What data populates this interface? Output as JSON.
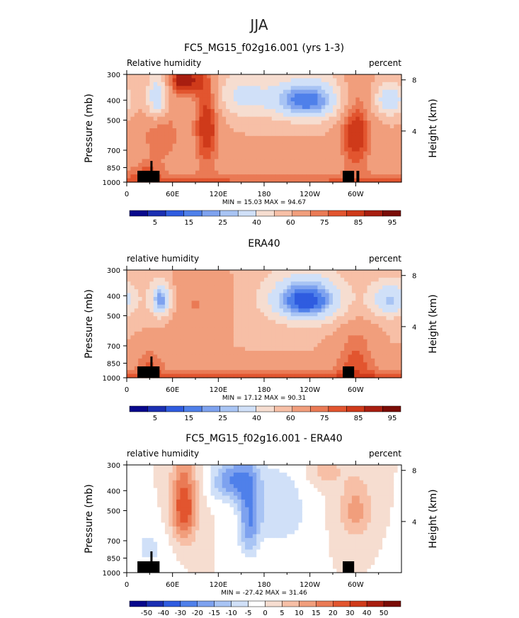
{
  "page": {
    "title": "JJA"
  },
  "colors": {
    "full": [
      "#08088c",
      "#1b2fb2",
      "#2f5ce0",
      "#4f80ea",
      "#7ea2ef",
      "#a8c4f4",
      "#d0e0f8",
      "#f6ddd0",
      "#f7bfa6",
      "#f19e7c",
      "#ea7a55",
      "#e2552f",
      "#cf3a1a",
      "#a81e10",
      "#7a0c06"
    ],
    "diff": [
      "#08088c",
      "#1b2fb2",
      "#2f5ce0",
      "#4f80ea",
      "#7ea2ef",
      "#a8c4f4",
      "#d0e0f8",
      "#ffffff",
      "#f6ddd0",
      "#f7bfa6",
      "#f19e7c",
      "#ea7a55",
      "#e2552f",
      "#cf3a1a",
      "#a81e10",
      "#7a0c06"
    ]
  },
  "chart_data": [
    {
      "type": "heatmap",
      "title": "FC5_MG15_f02g16.001 (yrs 1-3)",
      "left_label": "Relative humidity",
      "right_label": "percent",
      "xlabel": "",
      "ylabel": "Pressure (mb)",
      "ylabel_right": "Height (km)",
      "x_ticks": [
        "0",
        "60E",
        "120E",
        "180",
        "120W",
        "60W"
      ],
      "x_tick_values": [
        0,
        60,
        120,
        180,
        240,
        300
      ],
      "xlim": [
        0,
        360
      ],
      "y_ticks": [
        "300",
        "400",
        "500",
        "700",
        "850",
        "1000"
      ],
      "y_tick_values": [
        300,
        400,
        500,
        700,
        850,
        1000
      ],
      "ylim": [
        300,
        1000
      ],
      "height_ticks": [
        "8",
        "4"
      ],
      "height_tick_values": [
        8,
        4
      ],
      "stats": "MIN =   15.03   MAX =   94.67",
      "colorbar_labels": [
        "5",
        "15",
        "25",
        "40",
        "60",
        "75",
        "85",
        "95"
      ],
      "colorbar_levels": [
        0,
        5,
        10,
        15,
        20,
        25,
        30,
        40,
        50,
        60,
        70,
        75,
        80,
        85,
        90,
        95
      ],
      "scheme": "full",
      "base": 60,
      "surface": 78,
      "features": [
        {
          "lon": 40,
          "p": 390,
          "wlon": 10,
          "wp": 70,
          "amp": -38
        },
        {
          "lon": 45,
          "p": 570,
          "wlon": 20,
          "wp": 160,
          "amp": 15
        },
        {
          "lon": 75,
          "p": 320,
          "wlon": 15,
          "wp": 40,
          "amp": 28
        },
        {
          "lon": 105,
          "p": 520,
          "wlon": 12,
          "wp": 220,
          "amp": 25
        },
        {
          "lon": 150,
          "p": 380,
          "wlon": 25,
          "wp": 70,
          "amp": -22
        },
        {
          "lon": 235,
          "p": 400,
          "wlon": 35,
          "wp": 70,
          "amp": -45
        },
        {
          "lon": 300,
          "p": 560,
          "wlon": 15,
          "wp": 200,
          "amp": 25
        },
        {
          "lon": 345,
          "p": 400,
          "wlon": 15,
          "wp": 50,
          "amp": -30
        },
        {
          "lon": 25,
          "p": 900,
          "wlon": 15,
          "wp": 90,
          "amp": 10
        }
      ]
    },
    {
      "type": "heatmap",
      "title": "ERA40",
      "left_label": "relative humidity",
      "right_label": "percent",
      "xlabel": "",
      "ylabel": "Pressure (mb)",
      "ylabel_right": "Height (km)",
      "x_ticks": [
        "0",
        "60E",
        "120E",
        "180",
        "120W",
        "60W"
      ],
      "x_tick_values": [
        0,
        60,
        120,
        180,
        240,
        300
      ],
      "xlim": [
        0,
        360
      ],
      "y_ticks": [
        "300",
        "400",
        "500",
        "700",
        "850",
        "1000"
      ],
      "y_tick_values": [
        300,
        400,
        500,
        700,
        850,
        1000
      ],
      "ylim": [
        300,
        1000
      ],
      "height_ticks": [
        "8",
        "4"
      ],
      "height_tick_values": [
        8,
        4
      ],
      "stats": "MIN =   17.12   MAX =   90.31",
      "colorbar_labels": [
        "5",
        "15",
        "25",
        "40",
        "60",
        "75",
        "85",
        "95"
      ],
      "colorbar_levels": [
        0,
        5,
        10,
        15,
        20,
        25,
        30,
        40,
        50,
        60,
        70,
        75,
        80,
        85,
        90,
        95
      ],
      "scheme": "full",
      "base": 58,
      "surface": 80,
      "features": [
        {
          "lon": 45,
          "p": 420,
          "wlon": 10,
          "wp": 60,
          "amp": -40
        },
        {
          "lon": 90,
          "p": 440,
          "wlon": 30,
          "wp": 150,
          "amp": 12
        },
        {
          "lon": 235,
          "p": 420,
          "wlon": 35,
          "wp": 80,
          "amp": -48
        },
        {
          "lon": 345,
          "p": 420,
          "wlon": 20,
          "wp": 60,
          "amp": -30
        },
        {
          "lon": 300,
          "p": 760,
          "wlon": 20,
          "wp": 200,
          "amp": 15
        },
        {
          "lon": 30,
          "p": 820,
          "wlon": 15,
          "wp": 120,
          "amp": 12
        }
      ]
    },
    {
      "type": "heatmap",
      "title": "FC5_MG15_f02g16.001 - ERA40",
      "left_label": "relative humidity",
      "right_label": "percent",
      "xlabel": "",
      "ylabel": "Pressure (mb)",
      "ylabel_right": "Height (km)",
      "x_ticks": [
        "0",
        "60E",
        "120E",
        "180",
        "120W",
        "60W"
      ],
      "x_tick_values": [
        0,
        60,
        120,
        180,
        240,
        300
      ],
      "xlim": [
        0,
        360
      ],
      "y_ticks": [
        "300",
        "400",
        "500",
        "700",
        "850",
        "1000"
      ],
      "y_tick_values": [
        300,
        400,
        500,
        700,
        850,
        1000
      ],
      "ylim": [
        300,
        1000
      ],
      "height_ticks": [
        "8",
        "4"
      ],
      "height_tick_values": [
        8,
        4
      ],
      "stats": "MIN =  -27.42   MAX =   31.46",
      "colorbar_labels": [
        "-50",
        "-40",
        "-30",
        "-20",
        "-15",
        "-10",
        "-5",
        "0",
        "5",
        "10",
        "15",
        "20",
        "30",
        "40",
        "50"
      ],
      "colorbar_levels": [
        -60,
        -50,
        -40,
        -30,
        -20,
        -15,
        -10,
        -5,
        0,
        5,
        10,
        15,
        20,
        30,
        40,
        50
      ],
      "scheme": "diff",
      "base": 0,
      "surface": 0,
      "features": [
        {
          "lon": 75,
          "p": 480,
          "wlon": 12,
          "wp": 150,
          "amp": 25
        },
        {
          "lon": 140,
          "p": 360,
          "wlon": 20,
          "wp": 60,
          "amp": -20
        },
        {
          "lon": 160,
          "p": 560,
          "wlon": 10,
          "wp": 180,
          "amp": -18
        },
        {
          "lon": 200,
          "p": 500,
          "wlon": 25,
          "wp": 150,
          "amp": -10
        },
        {
          "lon": 300,
          "p": 500,
          "wlon": 15,
          "wp": 120,
          "amp": 12
        },
        {
          "lon": 30,
          "p": 760,
          "wlon": 20,
          "wp": 140,
          "amp": -6
        },
        {
          "lon": 260,
          "p": 320,
          "wlon": 15,
          "wp": 40,
          "amp": 8
        }
      ]
    }
  ]
}
